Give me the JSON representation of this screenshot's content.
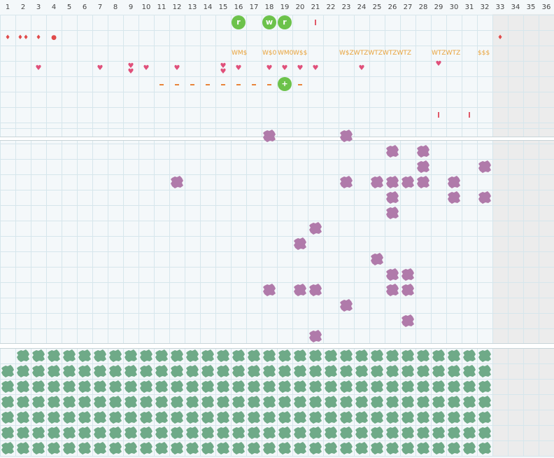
{
  "day_headers": [
    "1",
    "2",
    "3",
    "4",
    "5",
    "6",
    "7",
    "8",
    "9",
    "10",
    "11",
    "12",
    "13",
    "14",
    "15",
    "16",
    "17",
    "18",
    "19",
    "20",
    "21",
    "22",
    "23",
    "24",
    "25",
    "26",
    "27",
    "28",
    "29",
    "30",
    "31",
    "32",
    "33",
    "34",
    "35",
    "36"
  ],
  "colors": {
    "grid": "#d6e6ec",
    "background": "#f4f8fa",
    "off_zone": "#ececec",
    "drop_red": "#e04a4a",
    "heart_pink": "#e0507a",
    "dash_orange": "#e8843a",
    "tick_red": "#e05a6a",
    "text_orange": "#e8a23a",
    "sticker_green": "#6cc24a",
    "blob_purple": "#b07aaa",
    "blob_green": "#6faa88"
  },
  "stickers": [
    {
      "col": 16,
      "row": 1,
      "letter": "r",
      "name": "sticker-r-icon"
    },
    {
      "col": 18,
      "row": 1,
      "letter": "w",
      "name": "sticker-w-icon"
    },
    {
      "col": 19,
      "row": 1,
      "letter": "r",
      "name": "sticker-r-icon"
    },
    {
      "col": 19,
      "row": 5,
      "letter": "+",
      "name": "sticker-plus-icon"
    }
  ],
  "labels": [
    {
      "col": 16,
      "row": 3,
      "text": "WM$"
    },
    {
      "col": 18,
      "row": 3,
      "text": "W$0"
    },
    {
      "col": 19,
      "row": 3,
      "text": "WM0"
    },
    {
      "col": 20,
      "row": 3,
      "text": "W$$"
    },
    {
      "col": 23,
      "row": 3,
      "text": "W$ZWTZWTZWTZWTZ"
    },
    {
      "col": 29,
      "row": 3,
      "text": "WTZWTZ"
    },
    {
      "col": 32,
      "row": 3,
      "text": "$$$"
    }
  ],
  "drops": [
    {
      "col": 1,
      "row": 2,
      "glyph": "♦"
    },
    {
      "col": 2,
      "row": 2,
      "glyph": "♦♦"
    },
    {
      "col": 3,
      "row": 2,
      "glyph": "♦"
    },
    {
      "col": 4,
      "row": 2,
      "glyph": "●"
    },
    {
      "col": 33,
      "row": 2,
      "glyph": "♦"
    }
  ],
  "hearts": [
    {
      "col": 3,
      "row": 4
    },
    {
      "col": 7,
      "row": 4
    },
    {
      "col": 9,
      "row": 4,
      "double": true
    },
    {
      "col": 10,
      "row": 4
    },
    {
      "col": 12,
      "row": 4
    },
    {
      "col": 15,
      "row": 4,
      "double": true
    },
    {
      "col": 16,
      "row": 4
    },
    {
      "col": 18,
      "row": 4
    },
    {
      "col": 19,
      "row": 4
    },
    {
      "col": 20,
      "row": 4
    },
    {
      "col": 21,
      "row": 4
    },
    {
      "col": 24,
      "row": 4
    },
    {
      "col": 29,
      "row": 4,
      "high": true
    }
  ],
  "dashes": [
    11,
    12,
    13,
    14,
    15,
    16,
    17,
    18,
    20
  ],
  "ticks": [
    {
      "col": 21,
      "row": 1
    },
    {
      "col": 29,
      "row": 7
    },
    {
      "col": 31,
      "row": 7
    }
  ],
  "purple_blobs": [
    [
      18,
      0
    ],
    [
      23,
      0
    ],
    [
      26,
      1
    ],
    [
      28,
      1
    ],
    [
      28,
      2
    ],
    [
      32,
      2
    ],
    [
      12,
      3
    ],
    [
      23,
      3
    ],
    [
      25,
      3
    ],
    [
      26,
      3
    ],
    [
      27,
      3
    ],
    [
      28,
      3
    ],
    [
      30,
      3
    ],
    [
      26,
      4
    ],
    [
      30,
      4
    ],
    [
      32,
      4
    ],
    [
      26,
      5
    ],
    [
      21,
      6
    ],
    [
      20,
      7
    ],
    [
      25,
      8
    ],
    [
      26,
      9
    ],
    [
      27,
      9
    ],
    [
      18,
      10
    ],
    [
      20,
      10
    ],
    [
      21,
      10
    ],
    [
      26,
      10
    ],
    [
      27,
      10
    ],
    [
      23,
      11
    ],
    [
      27,
      12
    ],
    [
      21,
      13
    ]
  ],
  "green_rows": 7,
  "green_cols_last": 32
}
